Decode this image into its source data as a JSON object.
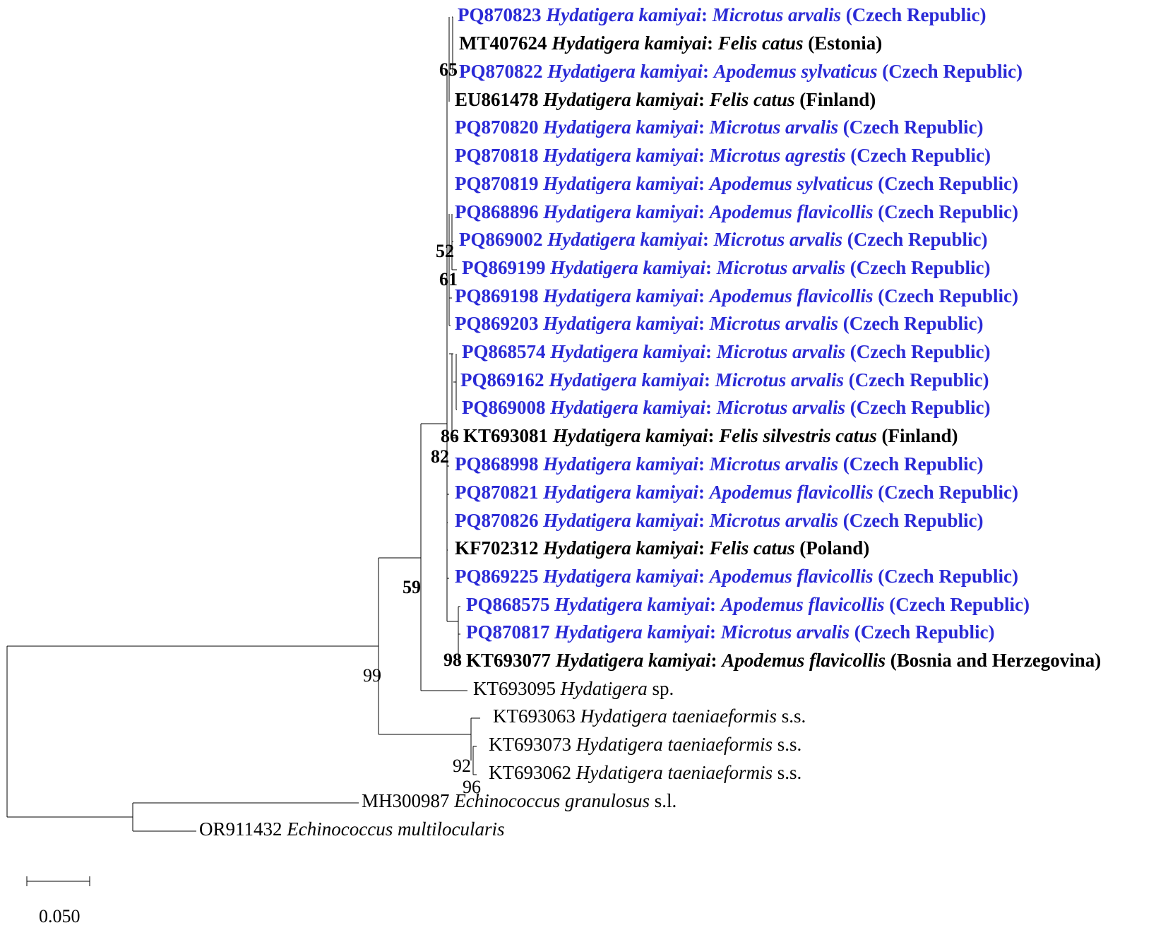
{
  "tree": {
    "leaves": [
      {
        "id": "L1",
        "parts": [
          [
            "PQ870823 ",
            0
          ],
          [
            "Hydatigera kamiyai",
            1
          ],
          [
            ": ",
            0
          ],
          [
            "Microtus arvalis",
            1
          ],
          [
            " (Czech Republic)",
            0
          ]
        ],
        "style": "hl"
      },
      {
        "id": "L2",
        "parts": [
          [
            "MT407624 ",
            0
          ],
          [
            "Hydatigera kamiyai",
            1
          ],
          [
            ": ",
            0
          ],
          [
            "Felis catus",
            1
          ],
          [
            " (Estonia)",
            0
          ]
        ],
        "style": "ref-bold"
      },
      {
        "id": "L3",
        "parts": [
          [
            "PQ870822 ",
            0
          ],
          [
            "Hydatigera kamiyai",
            1
          ],
          [
            ": ",
            0
          ],
          [
            "Apodemus sylvaticus",
            1
          ],
          [
            " (Czech Republic)",
            0
          ]
        ],
        "style": "hl"
      },
      {
        "id": "L4",
        "parts": [
          [
            "EU861478 ",
            0
          ],
          [
            "Hydatigera kamiyai",
            1
          ],
          [
            ": ",
            0
          ],
          [
            "Felis catus",
            1
          ],
          [
            " (Finland)",
            0
          ]
        ],
        "style": "ref-bold"
      },
      {
        "id": "L5",
        "parts": [
          [
            "PQ870820 ",
            0
          ],
          [
            "Hydatigera kamiyai",
            1
          ],
          [
            ": ",
            0
          ],
          [
            "Microtus arvalis",
            1
          ],
          [
            " (Czech Republic)",
            0
          ]
        ],
        "style": "hl"
      },
      {
        "id": "L6",
        "parts": [
          [
            "PQ870818 ",
            0
          ],
          [
            "Hydatigera kamiyai",
            1
          ],
          [
            ": ",
            0
          ],
          [
            "Microtus agrestis",
            1
          ],
          [
            " (Czech Republic)",
            0
          ]
        ],
        "style": "hl"
      },
      {
        "id": "L7",
        "parts": [
          [
            "PQ870819 ",
            0
          ],
          [
            "Hydatigera kamiyai",
            1
          ],
          [
            ": ",
            0
          ],
          [
            "Apodemus sylvaticus",
            1
          ],
          [
            " (Czech Republic)",
            0
          ]
        ],
        "style": "hl"
      },
      {
        "id": "L8",
        "parts": [
          [
            "PQ868896 ",
            0
          ],
          [
            "Hydatigera kamiyai",
            1
          ],
          [
            ": ",
            0
          ],
          [
            "Apodemus flavicollis",
            1
          ],
          [
            " (Czech Republic)",
            0
          ]
        ],
        "style": "hl"
      },
      {
        "id": "L9",
        "parts": [
          [
            "PQ869002 ",
            0
          ],
          [
            "Hydatigera kamiyai",
            1
          ],
          [
            ": ",
            0
          ],
          [
            "Microtus arvalis",
            1
          ],
          [
            " (Czech Republic)",
            0
          ]
        ],
        "style": "hl"
      },
      {
        "id": "L10",
        "parts": [
          [
            "PQ869199 ",
            0
          ],
          [
            "Hydatigera kamiyai",
            1
          ],
          [
            ": ",
            0
          ],
          [
            "Microtus arvalis",
            1
          ],
          [
            " (Czech Republic)",
            0
          ]
        ],
        "style": "hl"
      },
      {
        "id": "L11",
        "parts": [
          [
            "PQ869198 ",
            0
          ],
          [
            "Hydatigera kamiyai",
            1
          ],
          [
            ": ",
            0
          ],
          [
            "Apodemus flavicollis",
            1
          ],
          [
            " (Czech Republic)",
            0
          ]
        ],
        "style": "hl"
      },
      {
        "id": "L12",
        "parts": [
          [
            "PQ869203 ",
            0
          ],
          [
            "Hydatigera kamiyai",
            1
          ],
          [
            ": ",
            0
          ],
          [
            "Microtus arvalis",
            1
          ],
          [
            " (Czech Republic)",
            0
          ]
        ],
        "style": "hl"
      },
      {
        "id": "L13",
        "parts": [
          [
            "PQ868574 ",
            0
          ],
          [
            "Hydatigera kamiyai",
            1
          ],
          [
            ": ",
            0
          ],
          [
            "Microtus arvalis",
            1
          ],
          [
            " (Czech Republic)",
            0
          ]
        ],
        "style": "hl"
      },
      {
        "id": "L14",
        "parts": [
          [
            "PQ869162 ",
            0
          ],
          [
            "Hydatigera kamiyai",
            1
          ],
          [
            ": ",
            0
          ],
          [
            "Microtus arvalis",
            1
          ],
          [
            " (Czech Republic)",
            0
          ]
        ],
        "style": "hl"
      },
      {
        "id": "L15",
        "parts": [
          [
            "PQ869008 ",
            0
          ],
          [
            "Hydatigera kamiyai",
            1
          ],
          [
            ": ",
            0
          ],
          [
            "Microtus arvalis",
            1
          ],
          [
            " (Czech Republic)",
            0
          ]
        ],
        "style": "hl"
      },
      {
        "id": "L16",
        "parts": [
          [
            "KT693081 ",
            0
          ],
          [
            "Hydatigera kamiyai",
            1
          ],
          [
            ": ",
            0
          ],
          [
            "Felis silvestris catus",
            1
          ],
          [
            " (Finland)",
            0
          ]
        ],
        "style": "ref-bold"
      },
      {
        "id": "L17",
        "parts": [
          [
            "PQ868998 ",
            0
          ],
          [
            "Hydatigera kamiyai",
            1
          ],
          [
            ": ",
            0
          ],
          [
            "Microtus arvalis",
            1
          ],
          [
            " (Czech Republic)",
            0
          ]
        ],
        "style": "hl"
      },
      {
        "id": "L18",
        "parts": [
          [
            "PQ870821 ",
            0
          ],
          [
            "Hydatigera kamiyai",
            1
          ],
          [
            ": ",
            0
          ],
          [
            "Apodemus flavicollis",
            1
          ],
          [
            " (Czech Republic)",
            0
          ]
        ],
        "style": "hl"
      },
      {
        "id": "L19",
        "parts": [
          [
            "PQ870826 ",
            0
          ],
          [
            "Hydatigera kamiyai",
            1
          ],
          [
            ": ",
            0
          ],
          [
            "Microtus arvalis",
            1
          ],
          [
            " (Czech Republic)",
            0
          ]
        ],
        "style": "hl"
      },
      {
        "id": "L20",
        "parts": [
          [
            "KF702312 ",
            0
          ],
          [
            "Hydatigera kamiyai",
            1
          ],
          [
            ": ",
            0
          ],
          [
            "Felis catus",
            1
          ],
          [
            " (Poland)",
            0
          ]
        ],
        "style": "ref-bold"
      },
      {
        "id": "L21",
        "parts": [
          [
            "PQ869225 ",
            0
          ],
          [
            "Hydatigera kamiyai",
            1
          ],
          [
            ": ",
            0
          ],
          [
            "Apodemus flavicollis",
            1
          ],
          [
            " (Czech Republic)",
            0
          ]
        ],
        "style": "hl"
      },
      {
        "id": "L22",
        "parts": [
          [
            "PQ868575 ",
            0
          ],
          [
            "Hydatigera kamiyai",
            1
          ],
          [
            ": ",
            0
          ],
          [
            "Apodemus flavicollis",
            1
          ],
          [
            " (Czech Republic)",
            0
          ]
        ],
        "style": "hl"
      },
      {
        "id": "L23",
        "parts": [
          [
            "PQ870817 ",
            0
          ],
          [
            "Hydatigera kamiyai",
            1
          ],
          [
            ": ",
            0
          ],
          [
            "Microtus arvalis",
            1
          ],
          [
            " (Czech Republic)",
            0
          ]
        ],
        "style": "hl"
      },
      {
        "id": "L24",
        "parts": [
          [
            "KT693077 ",
            0
          ],
          [
            "Hydatigera kamiyai",
            1
          ],
          [
            ": ",
            0
          ],
          [
            "Apodemus flavicollis",
            1
          ],
          [
            " (Bosnia and Herzegovina)",
            0
          ]
        ],
        "style": "ref-bold"
      },
      {
        "id": "L25",
        "parts": [
          [
            "KT693095 ",
            0
          ],
          [
            "Hydatigera",
            1
          ],
          [
            " sp.",
            0
          ]
        ],
        "style": "ref-plain"
      },
      {
        "id": "L26",
        "parts": [
          [
            "KT693063 ",
            0
          ],
          [
            "Hydatigera taeniaeformis",
            1
          ],
          [
            " s.s.",
            0
          ]
        ],
        "style": "ref-plain"
      },
      {
        "id": "L27",
        "parts": [
          [
            "KT693073 ",
            0
          ],
          [
            "Hydatigera taeniaeformis",
            1
          ],
          [
            " s.s.",
            0
          ]
        ],
        "style": "ref-plain"
      },
      {
        "id": "L28",
        "parts": [
          [
            "KT693062 ",
            0
          ],
          [
            "Hydatigera taeniaeformis",
            1
          ],
          [
            " s.s.",
            0
          ]
        ],
        "style": "ref-plain"
      },
      {
        "id": "L29",
        "parts": [
          [
            "MH300987 ",
            0
          ],
          [
            "Echinococcus granulosus",
            1
          ],
          [
            " s.l.",
            0
          ]
        ],
        "style": "ref-plain"
      },
      {
        "id": "L30",
        "parts": [
          [
            "OR911432 ",
            0
          ],
          [
            "Echinococcus multilocularis",
            1
          ]
        ],
        "style": "ref-plain"
      }
    ],
    "bootstrap_values": [
      "65",
      "52",
      "61",
      "86",
      "82",
      "59",
      "98",
      "99",
      "92",
      "96"
    ],
    "scale_bar_label": "0.050"
  }
}
